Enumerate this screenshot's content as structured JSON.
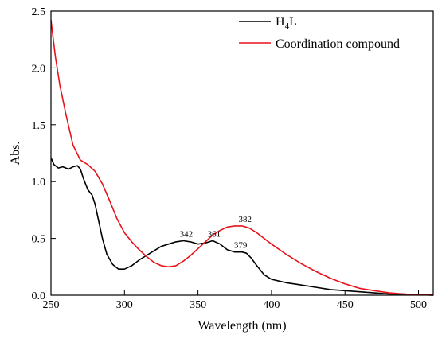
{
  "chart_data": {
    "type": "line",
    "title": "",
    "xlabel": "Wavelength (nm)",
    "ylabel": "Abs.",
    "xlim": [
      250,
      510
    ],
    "ylim": [
      0.0,
      2.5
    ],
    "x_ticks": [
      "250",
      "300",
      "350",
      "400",
      "450",
      "500"
    ],
    "y_ticks": [
      "0.0",
      "0.5",
      "1.0",
      "1.5",
      "2.0",
      "2.5"
    ],
    "grid": false,
    "legend_position": "top-right",
    "series": [
      {
        "name_base": "H",
        "name_sub": "4",
        "name_tail": "L",
        "color": "#000000",
        "x": [
          250,
          252,
          255,
          258,
          262,
          265,
          268,
          270,
          272,
          275,
          278,
          280,
          282,
          285,
          288,
          292,
          296,
          300,
          305,
          310,
          315,
          320,
          325,
          330,
          335,
          340,
          345,
          350,
          355,
          360,
          365,
          370,
          375,
          380,
          383,
          386,
          390,
          395,
          400,
          410,
          420,
          430,
          440,
          450,
          460,
          470,
          480,
          490,
          500,
          510
        ],
        "values": [
          1.21,
          1.15,
          1.12,
          1.13,
          1.11,
          1.13,
          1.14,
          1.11,
          1.03,
          0.93,
          0.88,
          0.8,
          0.68,
          0.5,
          0.36,
          0.27,
          0.23,
          0.23,
          0.26,
          0.31,
          0.35,
          0.39,
          0.43,
          0.45,
          0.47,
          0.48,
          0.47,
          0.45,
          0.46,
          0.48,
          0.45,
          0.4,
          0.38,
          0.38,
          0.37,
          0.33,
          0.26,
          0.18,
          0.14,
          0.11,
          0.09,
          0.07,
          0.05,
          0.04,
          0.03,
          0.02,
          0.01,
          0.01,
          0.005,
          0.0
        ]
      },
      {
        "name": "Coordination compound",
        "color": "#e8121b",
        "x": [
          250,
          253,
          256,
          260,
          265,
          270,
          275,
          280,
          285,
          290,
          295,
          300,
          305,
          310,
          315,
          320,
          325,
          330,
          335,
          340,
          345,
          350,
          355,
          360,
          365,
          370,
          375,
          380,
          385,
          390,
          395,
          400,
          410,
          420,
          430,
          440,
          450,
          460,
          470,
          480,
          490,
          500,
          510
        ],
        "values": [
          2.42,
          2.1,
          1.85,
          1.6,
          1.32,
          1.19,
          1.15,
          1.09,
          0.98,
          0.83,
          0.67,
          0.55,
          0.47,
          0.4,
          0.34,
          0.29,
          0.26,
          0.25,
          0.26,
          0.3,
          0.35,
          0.41,
          0.47,
          0.53,
          0.57,
          0.6,
          0.61,
          0.61,
          0.59,
          0.55,
          0.5,
          0.45,
          0.36,
          0.28,
          0.21,
          0.15,
          0.1,
          0.06,
          0.04,
          0.02,
          0.01,
          0.005,
          0.0
        ]
      }
    ],
    "annotations": [
      {
        "text": "342",
        "x": 342,
        "y": 0.48,
        "color": "#000000"
      },
      {
        "text": "361",
        "x": 361,
        "y": 0.48,
        "color": "#000000"
      },
      {
        "text": "379",
        "x": 379,
        "y": 0.38,
        "color": "#000000"
      },
      {
        "text": "382",
        "x": 382,
        "y": 0.61,
        "color": "#000000"
      }
    ]
  }
}
